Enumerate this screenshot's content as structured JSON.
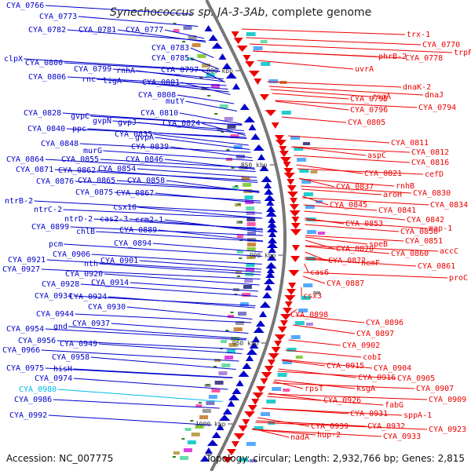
{
  "title": {
    "organism": "Synechococcus sp. JA-3-3Ab",
    "suffix": ", complete genome"
  },
  "accession": "Accession: NC_007775",
  "summary": "Topology: circular; Length: 2,932,766 bp; Genes: 2,815",
  "colors": {
    "forward": "#0000cc",
    "reverse": "#ee0000",
    "highlight": "#00bbee",
    "backbone": "#777777",
    "tick": "#2e7d22"
  },
  "ticks": [
    "800 kbp",
    "850 kbp",
    "900 kbp",
    "950 kbp",
    "1000 kbp"
  ],
  "forward_labels": [
    "CYA_0766",
    "CYA_0773",
    "CYA_0782",
    "CYA_0781",
    "CYA_0777",
    "CYA_0783",
    "CYA_0785",
    "clpX",
    "CYA_0800",
    "CYA_0799",
    "rnhA",
    "CYA_0797",
    "CYA_0806",
    "rnc",
    "ligA",
    "CYA_0801",
    "CYA_0808",
    "mutY",
    "CYA_0810",
    "CYA_0828",
    "gvpC",
    "gvpN",
    "gvpJ",
    "CYA_0824",
    "CYA_0840",
    "ppc",
    "CYA_0835",
    "gvpA",
    "CYA_0848",
    "murG",
    "CYA_0839",
    "CYA_0864",
    "CYA_0855",
    "CYA_0846",
    "CYA_0871",
    "CYA_0862",
    "CYA_0854",
    "CYA_0876",
    "CYA_0865",
    "CYA_0858",
    "CYA_0875",
    "CYA_0867",
    "csx10",
    "ntrB-2",
    "ntrC-2",
    "ntrD-2",
    "cas2-3",
    "crm2-1",
    "CYA_0899",
    "chlB",
    "CYA_0889",
    "pcm",
    "CYA_0894",
    "CYA_0906",
    "nth",
    "CYA_0921",
    "CYA_0901",
    "CYA_0927",
    "CYA_0920",
    "CYA_0928",
    "CYA_0914",
    "CYA_0934",
    "CYA_0924",
    "CYA_0930",
    "CYA_0944",
    "CYA_0937",
    "CYA_0954",
    "gnd",
    "CYA_0956",
    "CYA_0949",
    "CYA_0966",
    "CYA_0958",
    "hisH",
    "CYA_0975",
    "CYA_0974",
    "CYA_0980",
    "CYA_0986",
    "CYA_0992"
  ],
  "reverse_labels": [
    "trx-1",
    "CYA_0770",
    "trpF",
    "phrB-2",
    "CYA_0778",
    "uvrA",
    "dnaK-2",
    "rsgA",
    "dnaJ",
    "CYA_0795",
    "CYA_0794",
    "CYA_0796",
    "CYA_0805",
    "CYA_0811",
    "aspC",
    "CYA_0812",
    "CYA_0816",
    "CYA_0821",
    "cefD",
    "rnhB",
    "CYA_0837",
    "aroH",
    "CYA_0830",
    "CYA_0845",
    "CYA_0841",
    "CYA_0834",
    "CYA_0842",
    "CYA_0853",
    "CYA_0850",
    "map-1",
    "CYA_0851",
    "speB",
    "CYA_0870",
    "accC",
    "CYA_0860",
    "CYA_0872",
    "hemF",
    "CYA_0861",
    "cas6",
    "proC",
    "CYA_0887",
    "csx3",
    "CYA_0898",
    "CYA_0896",
    "CYA_0897",
    "CYA_0902",
    "cobI",
    "CYA_0904",
    "CYA_0915",
    "CYA_0905",
    "CYA_0916",
    "CYA_0907",
    "rpsT",
    "ksgA",
    "CYA_0909",
    "CYA_0926",
    "fabG",
    "CYA_0931",
    "sppA-1",
    "CYA_0939",
    "CYA_0932",
    "CYA_0923",
    "nadA",
    "hup-2",
    "CYA_0933"
  ]
}
